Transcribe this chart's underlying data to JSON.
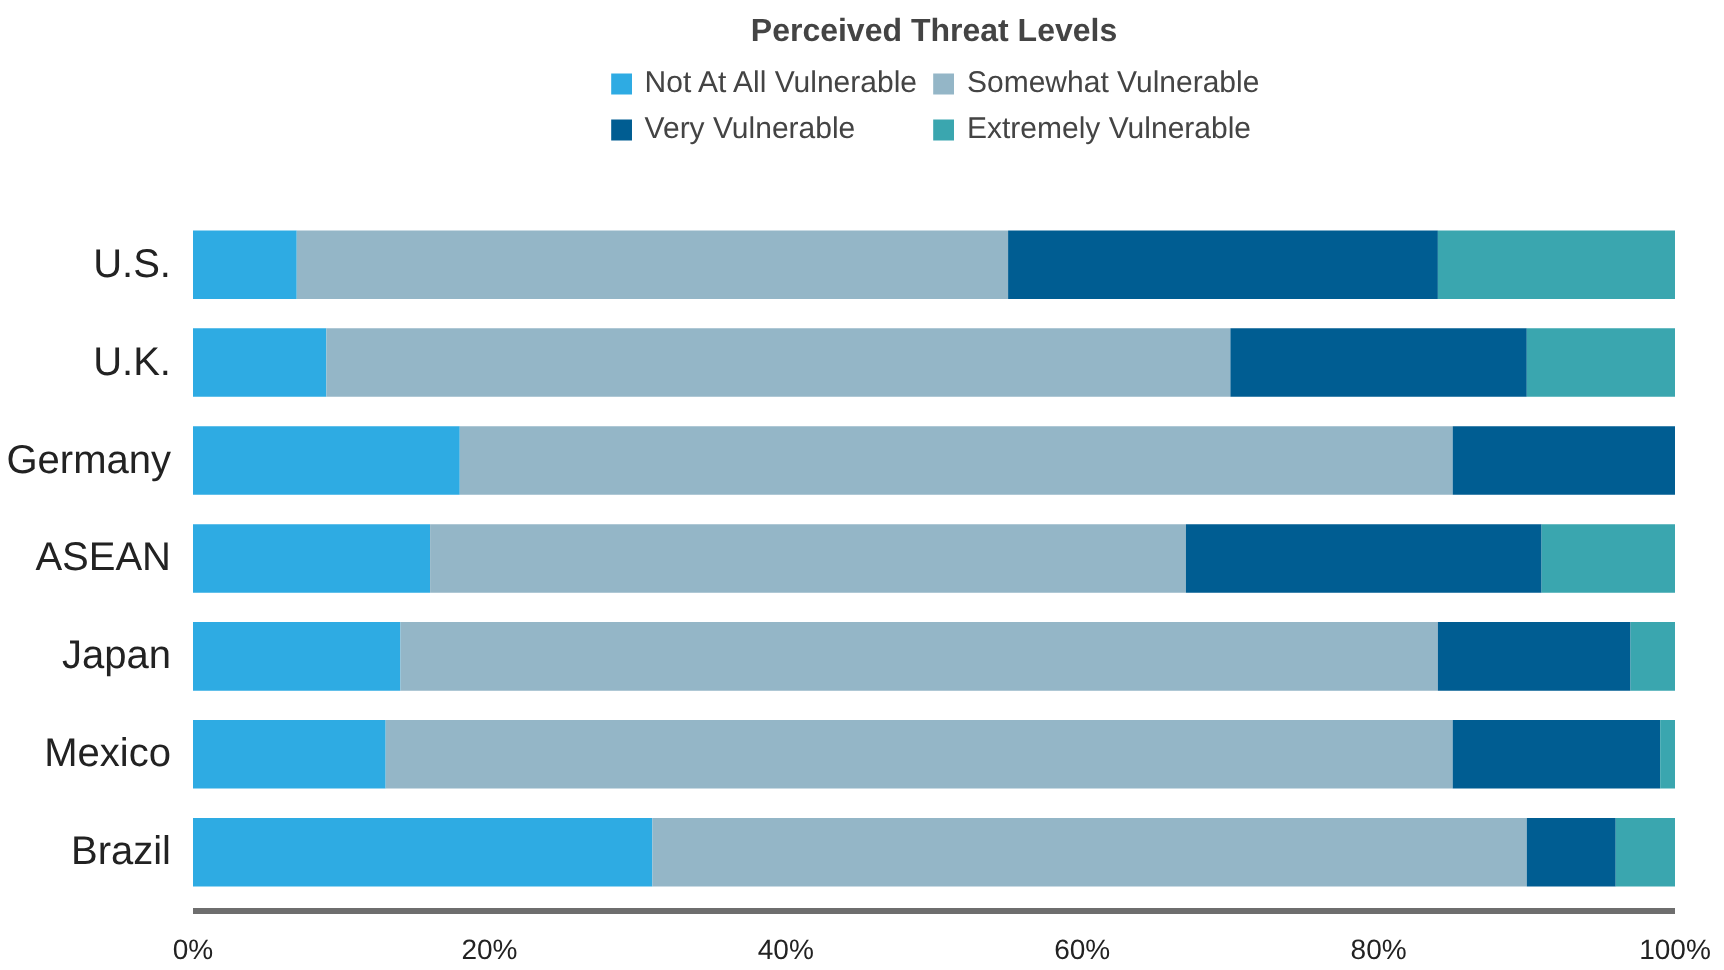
{
  "chart_data": {
    "type": "bar",
    "orientation": "horizontal",
    "stacked": true,
    "title": "Perceived Threat Levels",
    "categories": [
      "U.S.",
      "U.K.",
      "Germany",
      "ASEAN",
      "Japan",
      "Mexico",
      "Brazil"
    ],
    "series": [
      {
        "name": "Not At All Vulnerable",
        "color": "#2eabe3",
        "values": [
          7,
          9,
          18,
          16,
          14,
          13,
          31
        ]
      },
      {
        "name": "Somewhat Vulnerable",
        "color": "#94b6c7",
        "values": [
          48,
          61,
          67,
          51,
          70,
          72,
          59
        ]
      },
      {
        "name": "Very Vulnerable",
        "color": "#005d92",
        "values": [
          29,
          20,
          15,
          24,
          13,
          14,
          6
        ]
      },
      {
        "name": "Extremely Vulnerable",
        "color": "#3aa6af",
        "values": [
          16,
          10,
          0,
          9,
          3,
          1,
          4
        ]
      }
    ],
    "xlim": [
      0,
      100
    ],
    "xticks": [
      {
        "value": 0,
        "label": "0%"
      },
      {
        "value": 20,
        "label": "20%"
      },
      {
        "value": 40,
        "label": "40%"
      },
      {
        "value": 60,
        "label": "60%"
      },
      {
        "value": 80,
        "label": "80%"
      },
      {
        "value": 100,
        "label": "100%"
      }
    ],
    "grid": false,
    "legend": "top"
  }
}
